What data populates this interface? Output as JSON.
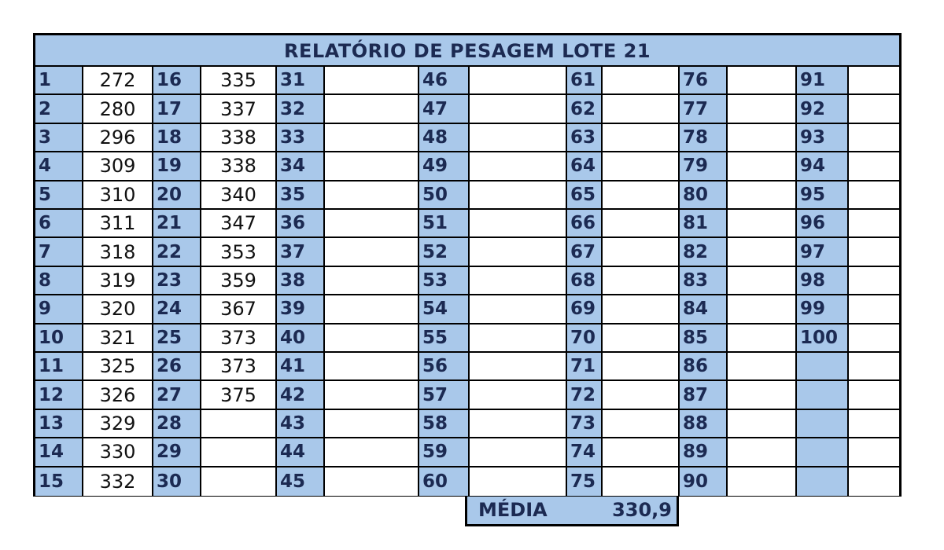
{
  "title": "RELATÓRIO DE PESAGEM LOTE 21",
  "table": {
    "columns": [
      {
        "numbers": [
          "1",
          "2",
          "3",
          "4",
          "5",
          "6",
          "7",
          "8",
          "9",
          "10",
          "11",
          "12",
          "13",
          "14",
          "15"
        ],
        "values": [
          "272",
          "280",
          "296",
          "309",
          "310",
          "311",
          "318",
          "319",
          "320",
          "321",
          "325",
          "326",
          "329",
          "330",
          "332"
        ]
      },
      {
        "numbers": [
          "16",
          "17",
          "18",
          "19",
          "20",
          "21",
          "22",
          "23",
          "24",
          "25",
          "26",
          "27",
          "28",
          "29",
          "30"
        ],
        "values": [
          "335",
          "337",
          "338",
          "338",
          "340",
          "347",
          "353",
          "359",
          "367",
          "373",
          "373",
          "375",
          "",
          "",
          ""
        ]
      },
      {
        "numbers": [
          "31",
          "32",
          "33",
          "34",
          "35",
          "36",
          "37",
          "38",
          "39",
          "40",
          "41",
          "42",
          "43",
          "44",
          "45"
        ],
        "values": [
          "",
          "",
          "",
          "",
          "",
          "",
          "",
          "",
          "",
          "",
          "",
          "",
          "",
          "",
          ""
        ]
      },
      {
        "numbers": [
          "46",
          "47",
          "48",
          "49",
          "50",
          "51",
          "52",
          "53",
          "54",
          "55",
          "56",
          "57",
          "58",
          "59",
          "60"
        ],
        "values": [
          "",
          "",
          "",
          "",
          "",
          "",
          "",
          "",
          "",
          "",
          "",
          "",
          "",
          "",
          ""
        ]
      },
      {
        "numbers": [
          "61",
          "62",
          "63",
          "64",
          "65",
          "66",
          "67",
          "68",
          "69",
          "70",
          "71",
          "72",
          "73",
          "74",
          "75"
        ],
        "values": [
          "",
          "",
          "",
          "",
          "",
          "",
          "",
          "",
          "",
          "",
          "",
          "",
          "",
          "",
          ""
        ]
      },
      {
        "numbers": [
          "76",
          "77",
          "78",
          "79",
          "80",
          "81",
          "82",
          "83",
          "84",
          "85",
          "86",
          "87",
          "88",
          "89",
          "90"
        ],
        "values": [
          "",
          "",
          "",
          "",
          "",
          "",
          "",
          "",
          "",
          "",
          "",
          "",
          "",
          "",
          ""
        ]
      },
      {
        "numbers": [
          "91",
          "92",
          "93",
          "94",
          "95",
          "96",
          "97",
          "98",
          "99",
          "100",
          "",
          "",
          "",
          "",
          ""
        ],
        "values": [
          "",
          "",
          "",
          "",
          "",
          "",
          "",
          "",
          "",
          "",
          "",
          "",
          "",
          "",
          ""
        ]
      }
    ]
  },
  "summary": {
    "label": "MÉDIA",
    "value": "330,9"
  },
  "colors": {
    "header_fill": "#a9c8ea",
    "number_text": "#1c2a52"
  }
}
